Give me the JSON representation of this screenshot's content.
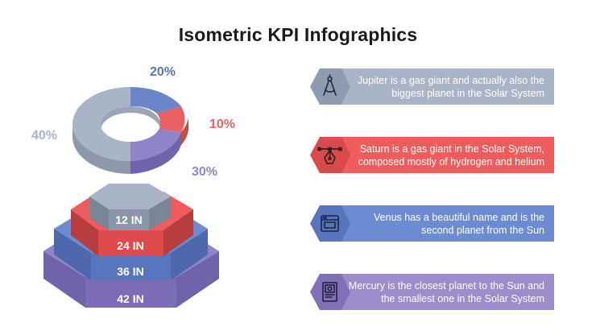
{
  "title": "Isometric KPI Infographics",
  "donut": {
    "segments": [
      {
        "label": "20%",
        "value": 20,
        "color": "#6a86c9"
      },
      {
        "label": "10%",
        "value": 10,
        "color": "#e8605f"
      },
      {
        "label": "30%",
        "value": 30,
        "color": "#8f84c7"
      },
      {
        "label": "40%",
        "value": 40,
        "color": "#a9b4c6"
      }
    ]
  },
  "pyramid": {
    "tiers": [
      {
        "label": "12 IN",
        "color": "#8b97a8"
      },
      {
        "label": "24 IN",
        "color": "#df4b4c"
      },
      {
        "label": "36 IN",
        "color": "#5876bd"
      },
      {
        "label": "42 IN",
        "color": "#7b6cb5"
      }
    ]
  },
  "items": [
    {
      "text": "Jupiter is a gas giant and actually also the biggest planet in the Solar System",
      "icon": "compass-icon",
      "color": "#a9b4c6",
      "hex_color": "#8f9bb0"
    },
    {
      "text": "Saturn is a gas giant in the Solar System, composed mostly of hydrogen and helium",
      "icon": "pen-tool-icon",
      "color": "#ee5c5c",
      "hex_color": "#d94a4a"
    },
    {
      "text": "Venus has a beautiful name and is the second planet from the Sun",
      "icon": "browser-window-icon",
      "color": "#6d8bd0",
      "hex_color": "#5775bd"
    },
    {
      "text": "Mercury is the closest planet to the Sun and the smallest one in the Solar System",
      "icon": "design-document-icon",
      "color": "#9c8dcd",
      "hex_color": "#8070b8"
    }
  ]
}
